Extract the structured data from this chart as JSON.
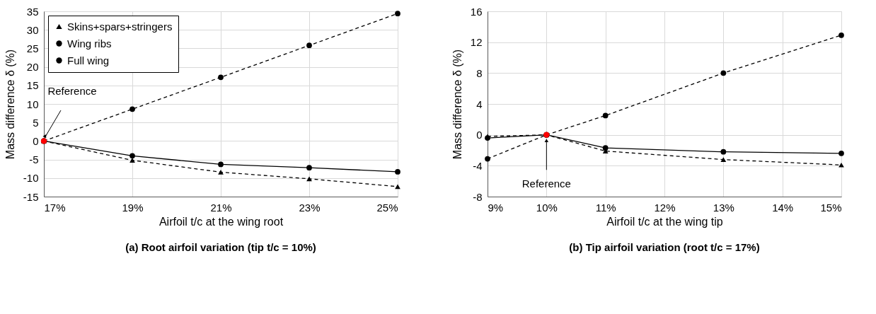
{
  "chart_data": [
    {
      "type": "line",
      "title": "(a) Root airfoil variation (tip t/c = 10%)",
      "xlabel": "Airfoil t/c at the wing root",
      "ylabel": "Mass difference δ (%)",
      "x": [
        17,
        19,
        21,
        23,
        25
      ],
      "xlim": [
        17,
        25
      ],
      "xticks": [
        {
          "value": 17,
          "label": "17%"
        },
        {
          "value": 19,
          "label": "19%"
        },
        {
          "value": 21,
          "label": "21%"
        },
        {
          "value": 23,
          "label": "23%"
        },
        {
          "value": 25,
          "label": "25%"
        }
      ],
      "ylim": [
        -15,
        35
      ],
      "yticks": [
        -15,
        -10,
        -5,
        0,
        5,
        10,
        15,
        20,
        25,
        30,
        35
      ],
      "grid": true,
      "legend": "top left",
      "series": [
        {
          "name": "Skins+spars+stringers",
          "color": "#000000",
          "line_style": "dashed",
          "marker": "triangle",
          "values": [
            0,
            -5.2,
            -8.4,
            -10.2,
            -12.3
          ]
        },
        {
          "name": "Wing ribs",
          "color": "#000000",
          "line_style": "dashed",
          "marker": "circle",
          "values": [
            0,
            8.6,
            17.2,
            25.8,
            34.4
          ]
        },
        {
          "name": "Full wing",
          "color": "#000000",
          "line_style": "solid",
          "marker": "circle",
          "values": [
            0,
            -4.0,
            -6.3,
            -7.2,
            -8.3
          ]
        },
        {
          "type": "scatter",
          "color": "#ff0000",
          "marker": "circle",
          "x": [
            17
          ],
          "values": [
            0
          ]
        }
      ],
      "annotations": [
        {
          "text": "Reference",
          "x": 17,
          "y": 0
        }
      ]
    },
    {
      "type": "line",
      "title": "(b) Tip airfoil variation (root t/c = 17%)",
      "xlabel": "Airfoil t/c at the wing tip",
      "ylabel": "Mass difference δ (%)",
      "x": [
        9,
        10,
        11,
        13,
        15
      ],
      "xlim": [
        9,
        15
      ],
      "xticks": [
        {
          "value": 9,
          "label": "9%"
        },
        {
          "value": 10,
          "label": "10%"
        },
        {
          "value": 11,
          "label": "11%"
        },
        {
          "value": 12,
          "label": "12%"
        },
        {
          "value": 13,
          "label": "13%"
        },
        {
          "value": 14,
          "label": "14%"
        },
        {
          "value": 15,
          "label": "15%"
        }
      ],
      "ylim": [
        -8,
        16
      ],
      "yticks": [
        -8,
        -4,
        0,
        4,
        8,
        12,
        16
      ],
      "grid": true,
      "legend": "top left",
      "series": [
        {
          "name": "Skins+spars+stringers",
          "color": "#000000",
          "line_style": "dashed",
          "marker": "triangle",
          "values": [
            -0.2,
            0,
            -2.1,
            -3.2,
            -3.9
          ]
        },
        {
          "name": "Wing ribs",
          "color": "#000000",
          "line_style": "dashed",
          "marker": "circle",
          "values": [
            -3.1,
            0,
            2.5,
            8.0,
            12.9
          ]
        },
        {
          "name": "Full wing",
          "color": "#000000",
          "line_style": "solid",
          "marker": "circle",
          "values": [
            -0.4,
            0,
            -1.7,
            -2.2,
            -2.4
          ]
        },
        {
          "type": "scatter",
          "color": "#ff0000",
          "marker": "circle",
          "x": [
            10
          ],
          "values": [
            0
          ]
        }
      ],
      "annotations": [
        {
          "text": "Reference",
          "x": 10,
          "y": 0
        }
      ]
    }
  ]
}
